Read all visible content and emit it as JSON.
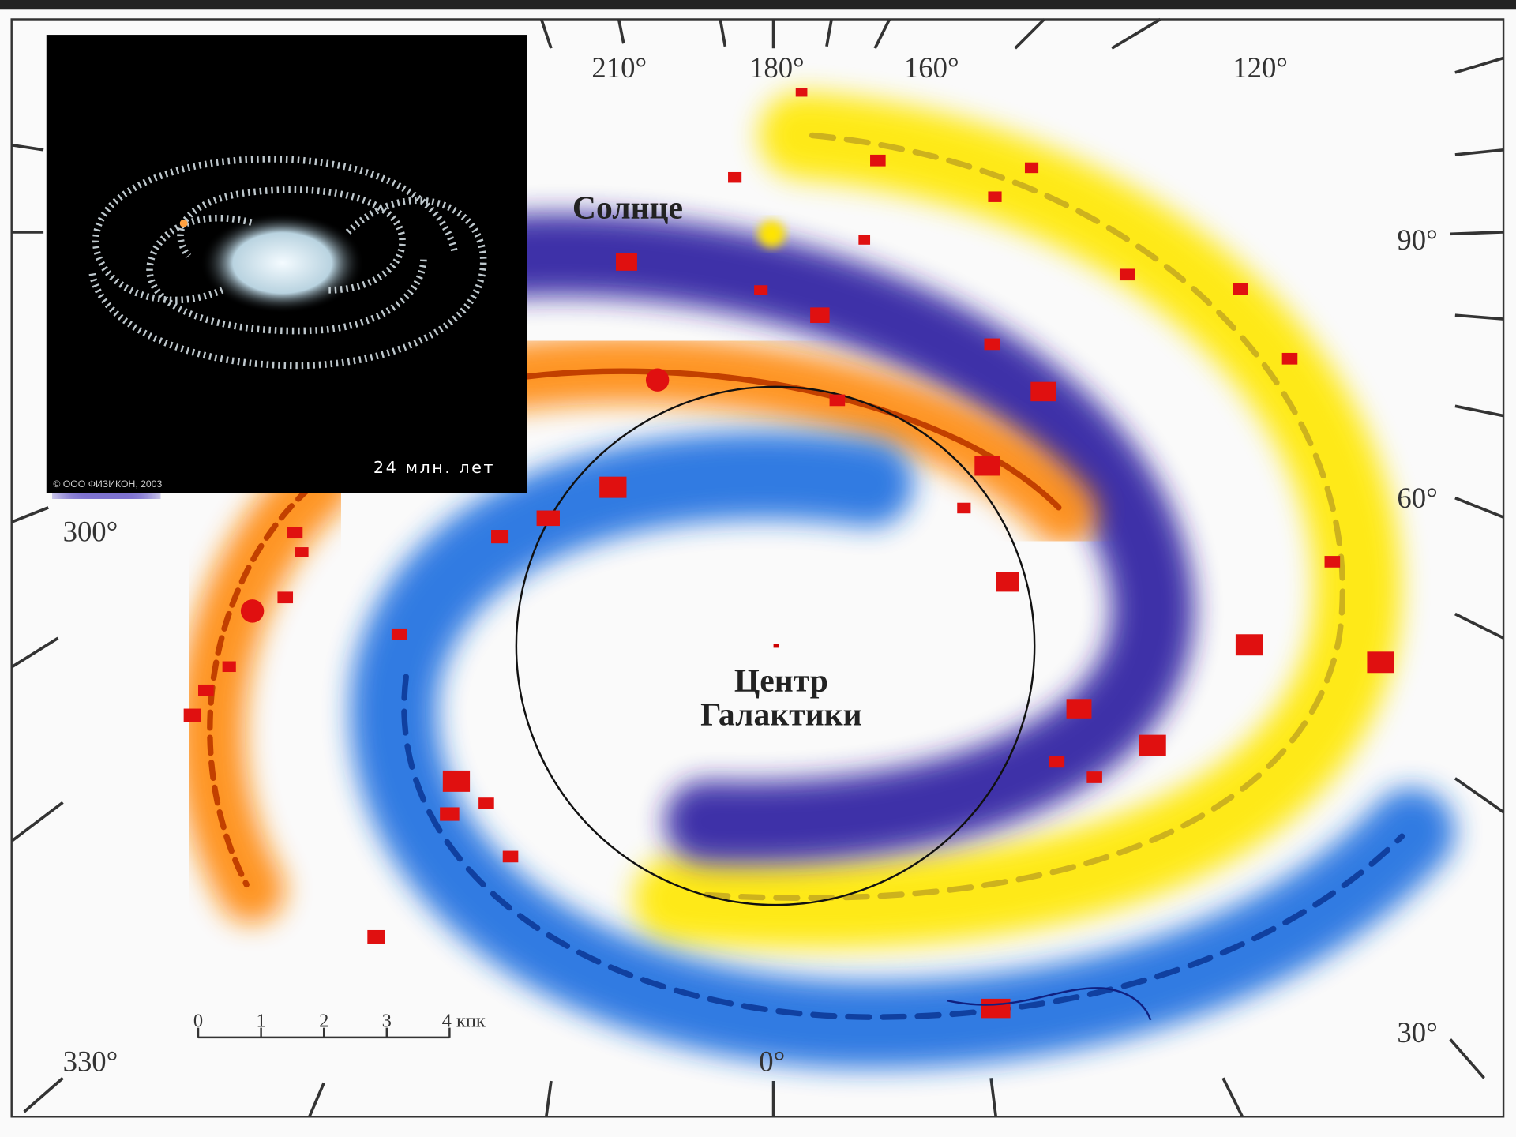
{
  "angle_labels": [
    "210°",
    "180°",
    "160°",
    "120°",
    "90°",
    "60°",
    "30°",
    "0°",
    "330°",
    "300°"
  ],
  "sun_label": "Солнце",
  "center_label": [
    "Центр",
    "Галактики"
  ],
  "scale": {
    "ticks": [
      "0",
      "1",
      "2",
      "3",
      "4"
    ],
    "unit": "кпк"
  },
  "inset": {
    "time": "24 млн. лет",
    "copyright": "© ООО ФИЗИКОН, 2003"
  }
}
